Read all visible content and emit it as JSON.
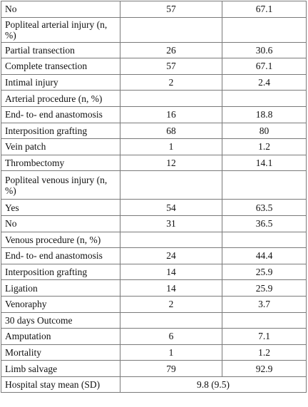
{
  "rows": [
    {
      "type": "data",
      "label": "No",
      "n": "57",
      "pct": "67.1"
    },
    {
      "type": "section",
      "label": "Popliteal arterial injury (n, %)"
    },
    {
      "type": "data",
      "label": "Partial transection",
      "n": "26",
      "pct": "30.6"
    },
    {
      "type": "data",
      "label": "Complete transection",
      "n": "57",
      "pct": "67.1"
    },
    {
      "type": "data",
      "label": "Intimal injury",
      "n": "2",
      "pct": "2.4"
    },
    {
      "type": "section",
      "label": "Arterial procedure (n, %)"
    },
    {
      "type": "data",
      "label": "End- to- end anastomosis",
      "n": "16",
      "pct": "18.8"
    },
    {
      "type": "data",
      "label": "Interposition grafting",
      "n": "68",
      "pct": "80"
    },
    {
      "type": "data",
      "label": "Vein patch",
      "n": "1",
      "pct": "1.2"
    },
    {
      "type": "data",
      "label": "Thrombectomy",
      "n": "12",
      "pct": "14.1"
    },
    {
      "type": "section",
      "label": "Popliteal venous injury (n, %)",
      "tall": true
    },
    {
      "type": "data",
      "label": "Yes",
      "n": "54",
      "pct": "63.5"
    },
    {
      "type": "data",
      "label": "No",
      "n": "31",
      "pct": "36.5"
    },
    {
      "type": "section",
      "label": "Venous procedure (n, %)"
    },
    {
      "type": "data",
      "label": "End- to- end anastomosis",
      "n": "24",
      "pct": "44.4"
    },
    {
      "type": "data",
      "label": "Interposition grafting",
      "n": "14",
      "pct": "25.9"
    },
    {
      "type": "data",
      "label": "Ligation",
      "n": "14",
      "pct": "25.9"
    },
    {
      "type": "data",
      "label": "Venoraphy",
      "n": "2",
      "pct": "3.7"
    },
    {
      "type": "section",
      "label": "30 days Outcome"
    },
    {
      "type": "data",
      "label": "Amputation",
      "n": "6",
      "pct": "7.1"
    },
    {
      "type": "data",
      "label": "Mortality",
      "n": "1",
      "pct": "1.2"
    },
    {
      "type": "data",
      "label": "Limb salvage",
      "n": "79",
      "pct": "92.9"
    },
    {
      "type": "merged",
      "label": "Hospital stay mean (SD)",
      "value": "9.8 (9.5)"
    }
  ]
}
